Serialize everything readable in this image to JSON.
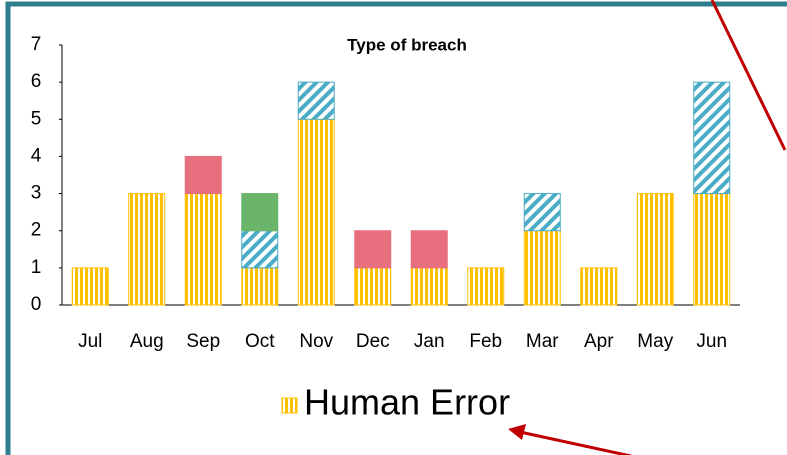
{
  "chart_data": {
    "type": "bar",
    "stacked": true,
    "title": "Type of breach",
    "categories": [
      "Jul",
      "Aug",
      "Sep",
      "Oct",
      "Nov",
      "Dec",
      "Jan",
      "Feb",
      "Mar",
      "Apr",
      "May",
      "Jun"
    ],
    "series": [
      {
        "name": "Human Error",
        "color": "#ffc000",
        "pattern": "vertical-stripes",
        "values": [
          1,
          3,
          3,
          1,
          5,
          1,
          1,
          1,
          2,
          1,
          3,
          3
        ]
      },
      {
        "color": "#4bacc6",
        "pattern": "diagonal-stripes",
        "values": [
          0,
          0,
          0,
          1,
          1,
          0,
          0,
          0,
          1,
          0,
          0,
          3
        ]
      },
      {
        "color": "#e8707e",
        "pattern": "solid",
        "values": [
          0,
          0,
          1,
          0,
          0,
          1,
          1,
          0,
          0,
          0,
          0,
          0
        ]
      },
      {
        "color": "#6ab56a",
        "pattern": "solid",
        "values": [
          0,
          0,
          0,
          1,
          0,
          0,
          0,
          0,
          0,
          0,
          0,
          0
        ]
      }
    ],
    "ylim": [
      0,
      7
    ],
    "yticks": [
      0,
      1,
      2,
      3,
      4,
      5,
      6,
      7
    ],
    "grid": false,
    "legend": "bottom"
  }
}
